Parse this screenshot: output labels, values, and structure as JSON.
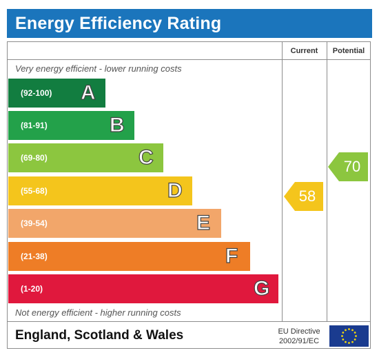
{
  "header": {
    "title": "Energy Efficiency Rating"
  },
  "columns": {
    "current": "Current",
    "potential": "Potential"
  },
  "captions": {
    "top": "Very energy efficient - lower running costs",
    "bottom": "Not energy efficient - higher running costs"
  },
  "bands": [
    {
      "range": "(92-100)",
      "letter": "A",
      "color": "#127d40"
    },
    {
      "range": "(81-91)",
      "letter": "B",
      "color": "#23a14a"
    },
    {
      "range": "(69-80)",
      "letter": "C",
      "color": "#8cc63f"
    },
    {
      "range": "(55-68)",
      "letter": "D",
      "color": "#f4c51c"
    },
    {
      "range": "(39-54)",
      "letter": "E",
      "color": "#f2a66a"
    },
    {
      "range": "(21-38)",
      "letter": "F",
      "color": "#ee7d26"
    },
    {
      "range": "(1-20)",
      "letter": "G",
      "color": "#e0183d"
    }
  ],
  "ratings": {
    "current": {
      "value": "58",
      "band": "D",
      "color": "#f4c51c"
    },
    "potential": {
      "value": "70",
      "band": "C",
      "color": "#8cc63f"
    }
  },
  "footer": {
    "region": "England, Scotland & Wales",
    "eu_directive_line1": "EU Directive",
    "eu_directive_line2": "2002/91/EC",
    "flag_icon": "eu-flag-icon"
  }
}
